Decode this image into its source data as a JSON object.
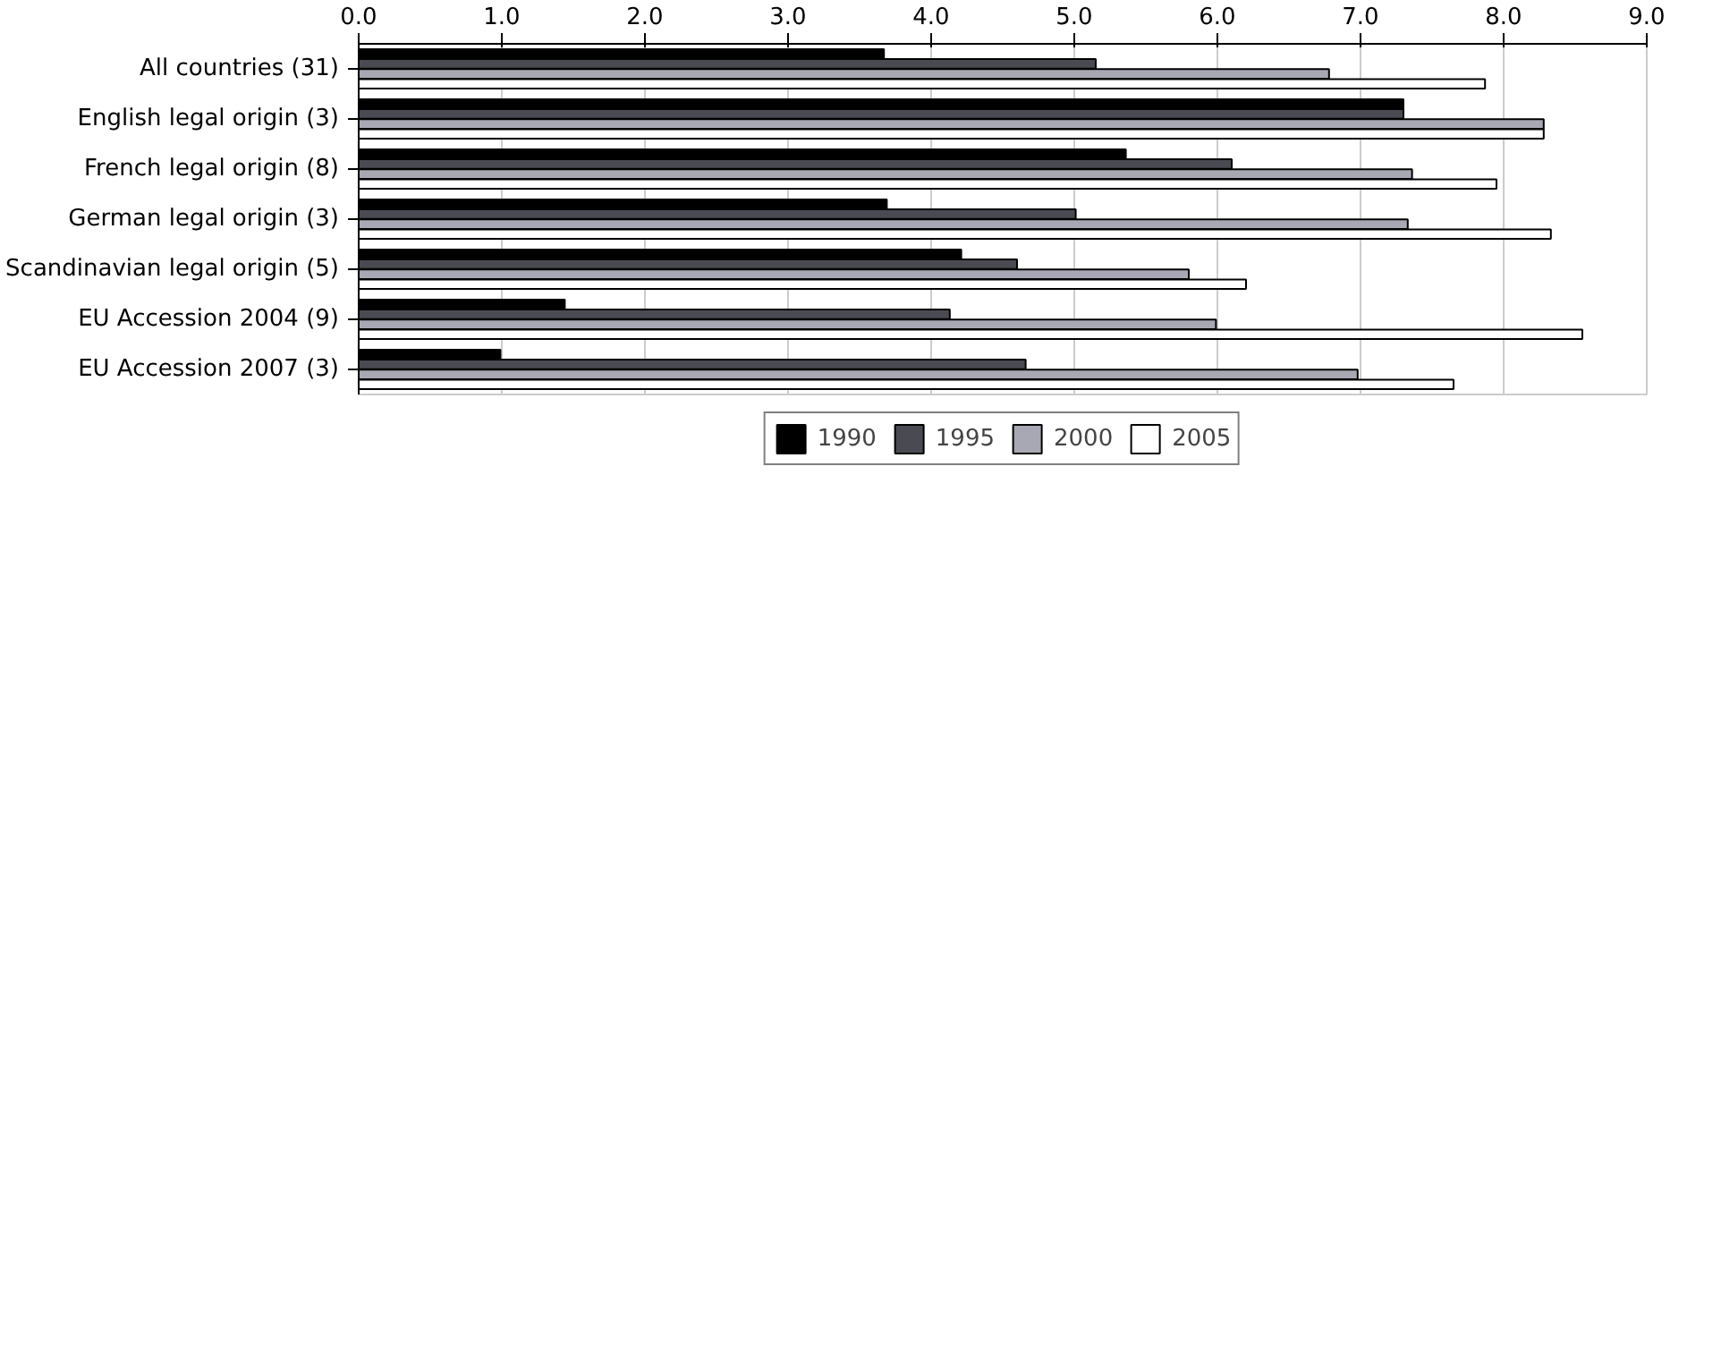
{
  "chart_data": {
    "type": "bar",
    "orientation": "horizontal",
    "categories": [
      "All countries (31)",
      "English legal origin (3)",
      "French legal origin (8)",
      "German legal origin (3)",
      "Scandinavian legal origin (5)",
      "EU Accession 2004 (9)",
      "EU Accession 2007 (3)"
    ],
    "series": [
      {
        "name": "1990",
        "color": "#000000",
        "values": [
          3.67,
          7.3,
          5.36,
          3.69,
          4.21,
          1.44,
          0.99
        ]
      },
      {
        "name": "1995",
        "color": "#4a4a52",
        "values": [
          5.15,
          7.3,
          6.1,
          5.01,
          4.6,
          4.13,
          4.66
        ]
      },
      {
        "name": "2000",
        "color": "#a8a8b4",
        "values": [
          6.78,
          8.28,
          7.36,
          7.33,
          5.8,
          5.99,
          6.98
        ]
      },
      {
        "name": "2005",
        "color": "#ffffff",
        "values": [
          7.87,
          8.28,
          7.95,
          8.33,
          6.2,
          8.55,
          7.65
        ]
      }
    ],
    "xlim": [
      0,
      9
    ],
    "xticks": [
      {
        "value": 0,
        "label": "0.0"
      },
      {
        "value": 1,
        "label": "1.0"
      },
      {
        "value": 2,
        "label": "2.0"
      },
      {
        "value": 3,
        "label": "3.0"
      },
      {
        "value": 4,
        "label": "4.0"
      },
      {
        "value": 5,
        "label": "5.0"
      },
      {
        "value": 6,
        "label": "6.0"
      },
      {
        "value": 7,
        "label": "7.0"
      },
      {
        "value": 8,
        "label": "8.0"
      },
      {
        "value": 9,
        "label": "9.0"
      }
    ],
    "grid": "x",
    "legend": "bottom"
  }
}
